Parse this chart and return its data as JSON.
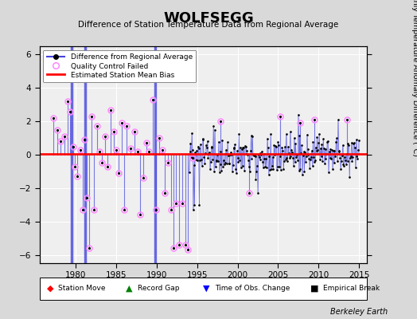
{
  "title": "WOLFSEGG",
  "subtitle": "Difference of Station Temperature Data from Regional Average",
  "ylabel_right": "Monthly Temperature Anomaly Difference (°C)",
  "xlim": [
    1975.5,
    2016.0
  ],
  "ylim": [
    -6.5,
    6.5
  ],
  "yticks": [
    -6,
    -4,
    -2,
    0,
    2,
    4,
    6
  ],
  "xticks": [
    1980,
    1985,
    1990,
    1995,
    2000,
    2005,
    2010,
    2015
  ],
  "bias_line_y": 0.05,
  "bias_line_color": "red",
  "fig_bg_color": "#d9d9d9",
  "plot_bg_color": "#efefef",
  "grid_color": "#ffffff",
  "line_color": "#4444dd",
  "qc_fail_edge_color": "#ff88ff",
  "watermark": "Berkeley Earth",
  "time_obs_change_years": [
    1979.5,
    1981.1,
    1989.8
  ],
  "early_years": [
    1977.2,
    1977.7,
    1978.1,
    1978.6,
    1979.0,
    1979.3,
    1979.7,
    1979.9,
    1980.1,
    1980.5,
    1980.8,
    1981.0,
    1981.3,
    1981.6,
    1981.9,
    1982.2,
    1982.6,
    1982.9,
    1983.2,
    1983.6,
    1983.9,
    1984.3,
    1984.7,
    1985.0,
    1985.3,
    1985.7,
    1985.95,
    1986.3,
    1986.7,
    1987.2,
    1987.6,
    1987.95,
    1988.3,
    1988.7,
    1989.0,
    1989.5,
    1989.9,
    1990.3,
    1990.7,
    1991.0,
    1991.4,
    1991.8,
    1992.1,
    1992.4,
    1992.8,
    1993.1,
    1993.5,
    1993.8
  ],
  "early_vals": [
    2.2,
    1.5,
    0.8,
    1.1,
    3.2,
    2.6,
    0.5,
    -0.7,
    -1.3,
    0.3,
    -3.3,
    0.9,
    -2.6,
    -5.6,
    2.3,
    -3.3,
    1.7,
    0.2,
    -0.5,
    1.1,
    -0.7,
    2.7,
    1.4,
    0.3,
    -1.1,
    1.9,
    -3.3,
    1.7,
    0.4,
    1.4,
    0.2,
    -3.6,
    -1.4,
    0.7,
    0.2,
    3.3,
    -3.3,
    1.0,
    0.3,
    -2.3,
    -0.5,
    -3.3,
    -5.6,
    -2.9,
    -5.4,
    -2.9,
    -5.4,
    -5.7
  ],
  "qc_later_years": [
    1994.4,
    1997.9,
    2001.4,
    2005.3,
    2007.7,
    2009.5,
    2013.5
  ],
  "qc_later_vals": [
    -0.2,
    2.0,
    -2.3,
    2.3,
    1.9,
    2.1,
    2.1
  ]
}
